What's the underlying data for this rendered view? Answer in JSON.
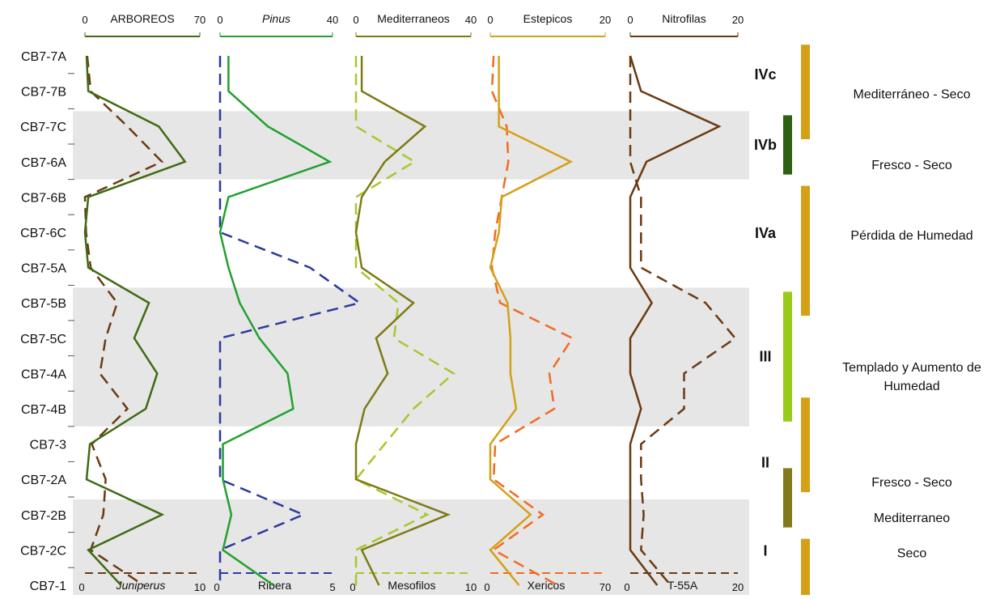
{
  "chart_data": {
    "type": "line",
    "samples": [
      "CB7-7A",
      "CB7-7B",
      "CB7-7C",
      "CB7-6A",
      "CB7-6B",
      "CB7-6C",
      "CB7-5A",
      "CB7-5B",
      "CB7-5C",
      "CB7-4A",
      "CB7-4B",
      "CB7-3",
      "CB7-2A",
      "CB7-2B",
      "CB7-2C",
      "CB7-1"
    ],
    "shaded_samples": [
      [
        "CB7-7C",
        "CB7-6A"
      ],
      [
        "CB7-5B",
        "CB7-4B"
      ],
      [
        "CB7-2B",
        "CB7-1"
      ]
    ],
    "panels": [
      {
        "top_axis": {
          "label": "ARBOREOS",
          "min": 0,
          "max": 70,
          "tick_labels": [
            "0",
            "70"
          ],
          "color": "#3f6b14"
        },
        "bottom_axis": {
          "label": "Juniperus",
          "italic": true,
          "min": 0,
          "max": 10,
          "tick_labels": [
            "0",
            "10"
          ],
          "color": "#6b3a10"
        },
        "solid_series": {
          "axis": "top",
          "color": "#3f6b14",
          "values": [
            1,
            2,
            45,
            61,
            2,
            0,
            2,
            39,
            30,
            44,
            37,
            3,
            1,
            47,
            2,
            22
          ]
        },
        "dashed_series": {
          "axis": "bottom",
          "color": "#6b3a10",
          "values": [
            0.2,
            0.5,
            3.7,
            6.7,
            0,
            0.1,
            0.5,
            2.8,
            1.8,
            1.3,
            3.7,
            0.6,
            1.8,
            1.6,
            0.5,
            5.1
          ]
        }
      },
      {
        "top_axis": {
          "label": "Pinus",
          "italic": true,
          "min": 0,
          "max": 40,
          "tick_labels": [
            "0",
            "40"
          ],
          "color": "#21a12e"
        },
        "bottom_axis": {
          "label": "Ribera",
          "italic": false,
          "min": 0,
          "max": 5,
          "tick_labels": [
            "0",
            "5"
          ],
          "color": "#2b3a9e"
        },
        "solid_series": {
          "axis": "top",
          "color": "#21a12e",
          "values": [
            3,
            3,
            17,
            39,
            3,
            0,
            3,
            7,
            14,
            24,
            26,
            1,
            1,
            4,
            1,
            19
          ]
        },
        "dashed_series": {
          "axis": "bottom",
          "color": "#2b3a9e",
          "values": [
            0,
            0,
            0,
            0,
            0,
            0,
            4,
            6.2,
            0,
            0,
            0,
            0,
            0,
            3.7,
            0,
            0
          ]
        }
      },
      {
        "top_axis": {
          "label": "Mediterraneos",
          "italic": false,
          "min": 0,
          "max": 40,
          "tick_labels": [
            "0",
            "40"
          ],
          "color": "#7d7a14"
        },
        "bottom_axis": {
          "label": "Mesofilos",
          "italic": false,
          "min": 0,
          "max": 10,
          "tick_labels": [
            "0",
            "10"
          ],
          "color": "#a5c82e"
        },
        "solid_series": {
          "axis": "top",
          "color": "#7d7a14",
          "values": [
            2,
            2,
            24,
            10,
            2,
            0,
            2,
            20,
            7,
            11,
            3,
            0,
            0,
            32,
            2,
            8
          ]
        },
        "dashed_series": {
          "axis": "bottom",
          "color": "#a5c82e",
          "values": [
            0,
            0,
            0,
            5.1,
            0,
            0,
            0,
            3.7,
            3.3,
            8.5,
            5,
            2.5,
            0,
            6.2,
            0,
            0
          ]
        }
      },
      {
        "top_axis": {
          "label": "Estepicos",
          "italic": false,
          "min": 0,
          "max": 20,
          "tick_labels": [
            "0",
            "20"
          ],
          "color": "#d4a017"
        },
        "bottom_axis": {
          "label": "Xericos",
          "italic": false,
          "min": 0,
          "max": 70,
          "tick_labels": [
            "0",
            "70"
          ],
          "color": "#f26b21"
        },
        "solid_series": {
          "axis": "top",
          "color": "#d4a017",
          "values": [
            1.5,
            1.5,
            1.5,
            14,
            2,
            1.5,
            0,
            3,
            3.5,
            3.5,
            4.5,
            0,
            0,
            7,
            0,
            5
          ]
        },
        "dashed_series": {
          "axis": "bottom",
          "color": "#f26b21",
          "values": [
            2,
            1,
            10,
            11,
            7,
            3,
            1,
            6,
            50,
            36,
            39,
            3,
            2,
            32,
            2,
            41
          ]
        }
      },
      {
        "top_axis": {
          "label": "Nitrofilas",
          "italic": false,
          "min": 0,
          "max": 20,
          "tick_labels": [
            "0",
            "20"
          ],
          "color": "#6b3a10"
        },
        "bottom_axis": {
          "label": "T-55A",
          "italic": false,
          "min": 0,
          "max": 20,
          "tick_labels": [
            "0",
            "20"
          ],
          "color": "#6b3a10"
        },
        "solid_series": {
          "axis": "top",
          "color": "#6b3a10",
          "values": [
            0,
            2,
            16.5,
            3,
            0,
            0,
            0,
            4,
            0,
            0,
            2,
            0,
            0,
            0,
            0,
            5
          ]
        },
        "dashed_series": {
          "axis": "bottom",
          "color": "#6b3a10",
          "values": [
            0,
            0,
            0,
            0,
            2,
            2,
            2,
            14,
            19.5,
            10,
            10,
            2,
            2,
            2.5,
            2,
            7.5
          ]
        }
      }
    ],
    "zones": [
      {
        "label": "IVc",
        "from": "CB7-7A",
        "to": "CB7-7B"
      },
      {
        "label": "IVb",
        "from": "CB7-7C",
        "to": "CB7-6A"
      },
      {
        "label": "IVa",
        "from": "CB7-6B",
        "to": "CB7-5A"
      },
      {
        "label": "III",
        "from": "CB7-5B",
        "to": "CB7-4B"
      },
      {
        "label": "II",
        "from": "CB7-3",
        "to": "CB7-2A"
      },
      {
        "label": "I",
        "from": "CB7-2B",
        "to": "CB7-1"
      }
    ],
    "interpretation_bars": [
      {
        "from": "CB7-7A",
        "to": "CB7-7C",
        "color": "#d4a017"
      },
      {
        "from": "CB7-7C",
        "to": "CB7-6A",
        "color": "#2e6112"
      },
      {
        "from": "CB7-6B",
        "to": "CB7-5B",
        "color": "#d4a017"
      },
      {
        "from": "CB7-5B",
        "to": "CB7-4B",
        "color": "#99cc1a"
      },
      {
        "from": "CB7-4B",
        "to": "CB7-2A",
        "color": "#d4a017"
      },
      {
        "from": "CB7-2A",
        "to": "CB7-2B",
        "color": "#807a1a"
      },
      {
        "from": "CB7-2C",
        "to": "CB7-1",
        "color": "#d4a017"
      }
    ],
    "interpretations": [
      {
        "lines": [
          "Mediterráneo - Seco"
        ],
        "at": "CB7-7B"
      },
      {
        "lines": [
          "Fresco - Seco"
        ],
        "at": "CB7-6A"
      },
      {
        "lines": [
          "Pérdida de Humedad"
        ],
        "at": "CB7-6C"
      },
      {
        "lines": [
          "Templado y Aumento de",
          "Humedad"
        ],
        "at": "CB7-4A"
      },
      {
        "lines": [
          "Fresco - Seco"
        ],
        "at": "CB7-2A"
      },
      {
        "lines": [
          "Mediterraneo"
        ],
        "at": "CB7-2B"
      },
      {
        "lines": [
          "Seco"
        ],
        "at": "CB7-2C"
      }
    ]
  }
}
